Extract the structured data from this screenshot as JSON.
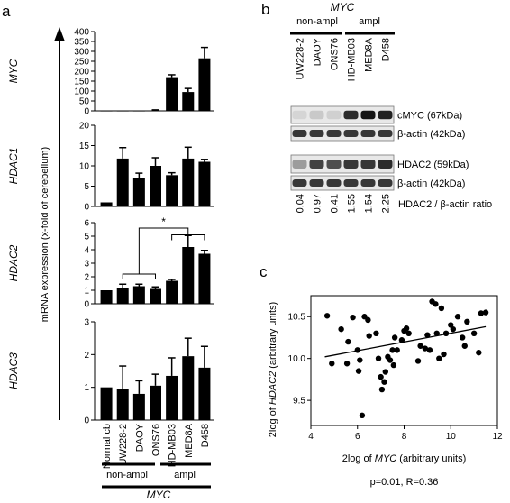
{
  "panels": {
    "a": "a",
    "b": "b",
    "c": "c"
  },
  "panel_a": {
    "ylabel": "mRNA expression (x-fold of cerebellum)",
    "xlabel": "MYC",
    "group_nonampl": "non-ampl",
    "group_ampl": "ampl",
    "significance": "*"
  },
  "panel_b": {
    "title": "MYC",
    "group_nonampl": "non-ampl",
    "group_ampl": "ampl",
    "lanes": [
      "UW228-2",
      "DAOY",
      "ONS76",
      "HD-MB03",
      "MED8A",
      "D458"
    ],
    "band_labels": [
      "cMYC (67kDa)",
      "β-actin (42kDa)",
      "HDAC2 (59kDa)",
      "β-actin (42kDa)"
    ],
    "ratios": [
      "0.04",
      "0.97",
      "0.41",
      "1.55",
      "1.54",
      "2.25"
    ],
    "ratio_label": "HDAC2 / β-actin ratio",
    "band_intensity": {
      "cMYC": [
        0.1,
        0.15,
        0.12,
        0.85,
        0.95,
        0.9
      ],
      "actin1": [
        0.8,
        0.8,
        0.8,
        0.8,
        0.8,
        0.8
      ],
      "HDAC2": [
        0.35,
        0.75,
        0.7,
        0.8,
        0.8,
        0.85
      ],
      "actin2": [
        0.8,
        0.8,
        0.8,
        0.8,
        0.8,
        0.8
      ]
    }
  },
  "chart_data": [
    {
      "type": "bar",
      "panel": "a",
      "ylabel_gene": "MYC",
      "categories": [
        "Normal cb",
        "UW228-2",
        "DAOY",
        "ONS76",
        "HD-MB03",
        "MED8A",
        "D458"
      ],
      "values": [
        1,
        1,
        1,
        2,
        170,
        95,
        265
      ],
      "errors": [
        0,
        0,
        0,
        3,
        12,
        18,
        55
      ],
      "yticks": [
        0,
        50,
        100,
        150,
        200,
        250,
        300,
        350,
        400
      ],
      "ylim": [
        0,
        400
      ]
    },
    {
      "type": "bar",
      "panel": "a",
      "ylabel_gene": "HDAC1",
      "categories": [
        "Normal cb",
        "UW228-2",
        "DAOY",
        "ONS76",
        "HD-MB03",
        "MED8A",
        "D458"
      ],
      "values": [
        1,
        11.8,
        7,
        10,
        7.7,
        11.8,
        11
      ],
      "errors": [
        0,
        2.7,
        1.2,
        2,
        0.6,
        2.8,
        0.6
      ],
      "yticks": [
        0,
        5,
        10,
        15,
        20
      ],
      "ylim": [
        0,
        20
      ]
    },
    {
      "type": "bar",
      "panel": "a",
      "ylabel_gene": "HDAC2",
      "categories": [
        "Normal cb",
        "UW228-2",
        "DAOY",
        "ONS76",
        "HD-MB03",
        "MED8A",
        "D458"
      ],
      "values": [
        1,
        1.2,
        1.3,
        1.1,
        1.7,
        4.2,
        3.7
      ],
      "errors": [
        0,
        0.25,
        0.15,
        0.15,
        0.1,
        0.85,
        0.25
      ],
      "yticks": [
        0,
        1,
        2,
        3,
        4,
        5,
        6
      ],
      "ylim": [
        0,
        6
      ]
    },
    {
      "type": "bar",
      "panel": "a",
      "ylabel_gene": "HDAC3",
      "categories": [
        "Normal cb",
        "UW228-2",
        "DAOY",
        "ONS76",
        "HD-MB03",
        "MED8A",
        "D458"
      ],
      "values": [
        1,
        0.95,
        0.8,
        1.05,
        1.35,
        1.95,
        1.6
      ],
      "errors": [
        0,
        0.7,
        0.4,
        0.35,
        0.55,
        0.55,
        0.65
      ],
      "yticks": [
        0,
        1,
        2,
        3
      ],
      "ylim": [
        0,
        3
      ]
    },
    {
      "type": "scatter",
      "panel": "c",
      "xlabel_prefix": "2log of ",
      "xlabel_gene": "MYC",
      "xlabel_suffix": " (arbitrary units)",
      "ylabel_prefix": "2log of ",
      "ylabel_gene": "HDAC2",
      "ylabel_suffix": " (arbitrary units)",
      "xlim": [
        4,
        12
      ],
      "ylim": [
        9.2,
        10.75
      ],
      "xticks": [
        4,
        6,
        8,
        10,
        12
      ],
      "yticks": [
        9.5,
        10.0,
        10.5
      ],
      "annotation": "p=0.01, R=0.36",
      "fit": {
        "x": [
          4.6,
          11.5
        ],
        "y": [
          10.02,
          10.38
        ]
      },
      "points": [
        [
          4.7,
          10.51
        ],
        [
          4.9,
          9.94
        ],
        [
          5.3,
          10.35
        ],
        [
          5.6,
          10.2
        ],
        [
          5.55,
          9.94
        ],
        [
          5.8,
          10.49
        ],
        [
          6.0,
          10.1
        ],
        [
          6.1,
          9.98
        ],
        [
          6.05,
          9.85
        ],
        [
          6.2,
          9.32
        ],
        [
          6.3,
          10.5
        ],
        [
          6.45,
          10.46
        ],
        [
          6.5,
          10.27
        ],
        [
          6.8,
          10.3
        ],
        [
          6.9,
          10.0
        ],
        [
          7.0,
          9.78
        ],
        [
          7.05,
          9.63
        ],
        [
          7.15,
          9.72
        ],
        [
          7.2,
          9.84
        ],
        [
          7.3,
          10.02
        ],
        [
          7.4,
          9.98
        ],
        [
          7.5,
          10.1
        ],
        [
          7.55,
          9.92
        ],
        [
          7.6,
          10.25
        ],
        [
          7.7,
          10.1
        ],
        [
          7.9,
          10.22
        ],
        [
          8.0,
          10.33
        ],
        [
          8.1,
          10.36
        ],
        [
          8.2,
          10.3
        ],
        [
          8.6,
          9.97
        ],
        [
          8.7,
          10.15
        ],
        [
          8.9,
          10.12
        ],
        [
          9.0,
          10.28
        ],
        [
          9.1,
          10.1
        ],
        [
          9.2,
          10.68
        ],
        [
          9.35,
          10.65
        ],
        [
          9.4,
          10.3
        ],
        [
          9.5,
          10.0
        ],
        [
          9.6,
          10.6
        ],
        [
          9.7,
          10.05
        ],
        [
          9.8,
          10.3
        ],
        [
          10.0,
          10.4
        ],
        [
          10.1,
          10.35
        ],
        [
          10.3,
          10.5
        ],
        [
          10.5,
          10.25
        ],
        [
          10.6,
          10.15
        ],
        [
          10.7,
          10.44
        ],
        [
          11.0,
          10.3
        ],
        [
          11.2,
          10.07
        ],
        [
          11.3,
          10.54
        ],
        [
          11.5,
          10.55
        ]
      ]
    }
  ]
}
